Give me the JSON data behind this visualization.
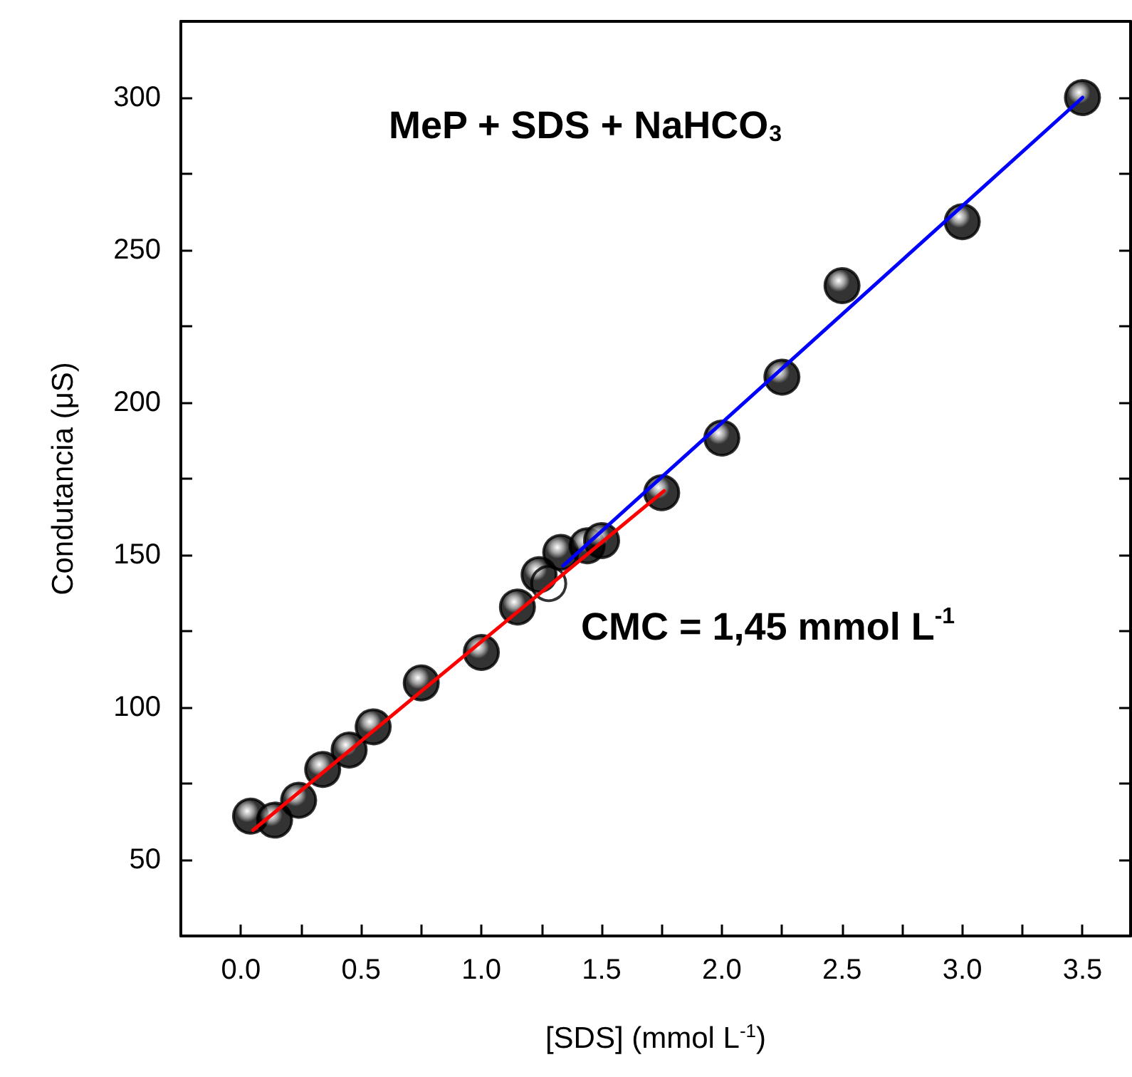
{
  "chart_data": {
    "type": "scatter",
    "title": "MeP + SDS + NaHCO$_{3}$",
    "xlabel": "[SDS] (mmol L$^{-1}$)",
    "ylabel": "Condutancia (μS)",
    "annotations": [
      "CMC = 1,45 mmol L$^{-1}$"
    ],
    "series": [
      {
        "type": "line",
        "color": "#ff0000",
        "marker": "none",
        "x": [
          0.05,
          1.76
        ],
        "values": [
          59.7,
          171
        ]
      },
      {
        "type": "line",
        "color": "#0000ff",
        "marker": "none",
        "x": [
          1.34,
          3.5
        ],
        "values": [
          146.4,
          300
        ]
      },
      {
        "color": "#000000",
        "marker": "circle",
        "x": [
          0.04,
          0.14,
          0.24,
          0.34,
          0.45,
          0.55,
          0.75,
          1.0,
          1.15,
          1.24,
          1.33,
          1.44,
          1.5,
          1.75,
          2.0,
          2.25,
          2.5,
          3.0,
          3.5
        ],
        "values": [
          64.3,
          63,
          69.5,
          79.6,
          86,
          93.6,
          108,
          118,
          132.9,
          143.5,
          150.8,
          153,
          154.7,
          170.4,
          188.3,
          208.3,
          238.3,
          259.3,
          300
        ]
      },
      {
        "marker": "circle",
        "x": [
          1.28
        ],
        "values": [
          140.6
        ]
      }
    ],
    "xlim": [
      -0.25,
      3.7
    ],
    "xticks": [
      {
        "value": -0.25,
        "label": null
      },
      {
        "value": 0,
        "label": "0.0"
      },
      {
        "value": 0.25,
        "label": null
      },
      {
        "value": 0.5,
        "label": "0.5"
      },
      {
        "value": 0.75,
        "label": null
      },
      {
        "value": 1,
        "label": "1.0"
      },
      {
        "value": 1.25,
        "label": null
      },
      {
        "value": 1.5,
        "label": "1.5"
      },
      {
        "value": 1.75,
        "label": null
      },
      {
        "value": 2,
        "label": "2.0"
      },
      {
        "value": 2.25,
        "label": null
      },
      {
        "value": 2.5,
        "label": "2.5"
      },
      {
        "value": 2.75,
        "label": null
      },
      {
        "value": 3,
        "label": "3.0"
      },
      {
        "value": 3.25,
        "label": null
      },
      {
        "value": 3.5,
        "label": "3.5"
      }
    ],
    "ylim": [
      25,
      325
    ],
    "yticks": [
      {
        "value": 25,
        "label": null
      },
      50,
      {
        "value": 75,
        "label": null
      },
      100,
      {
        "value": 125,
        "label": null
      },
      150,
      {
        "value": 175,
        "label": null
      },
      200,
      {
        "value": 225,
        "label": null
      },
      250,
      {
        "value": 275,
        "label": null
      },
      300,
      {
        "value": 325,
        "label": null
      }
    ],
    "grid": false
  }
}
